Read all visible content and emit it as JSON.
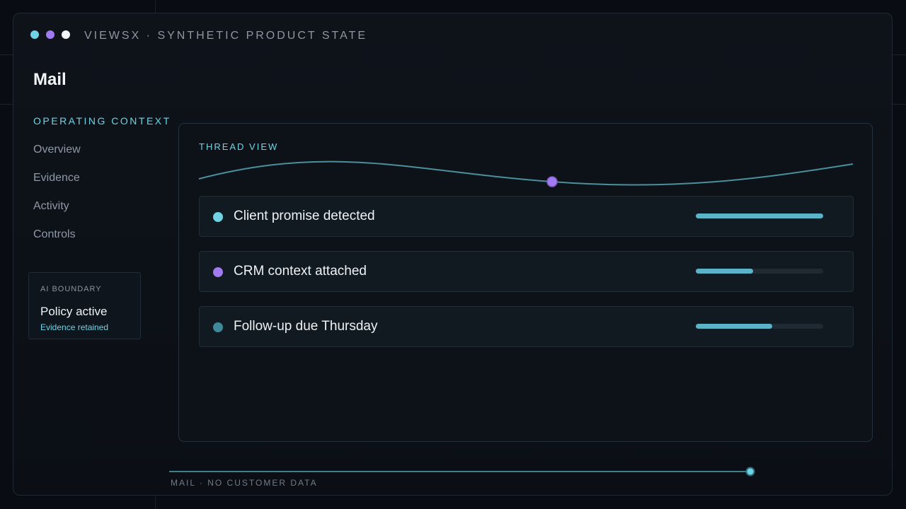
{
  "brand": {
    "text": "VIEWSX · SYNTHETIC PRODUCT STATE"
  },
  "window_dots": [
    {
      "name": "cyan",
      "color": "#6fd3e4"
    },
    {
      "name": "purple",
      "color": "#a07af0"
    },
    {
      "name": "white",
      "color": "#f2f5f8"
    }
  ],
  "app": {
    "title": "Mail"
  },
  "sidebar": {
    "heading": "OPERATING CONTEXT",
    "items": [
      {
        "label": "Overview"
      },
      {
        "label": "Evidence"
      },
      {
        "label": "Activity"
      },
      {
        "label": "Controls"
      }
    ]
  },
  "boundary": {
    "label": "AI BOUNDARY",
    "title": "Policy active",
    "subtitle": "Evidence retained"
  },
  "panel": {
    "title": "THREAD VIEW",
    "rows": [
      {
        "label": "Client promise detected",
        "dot_color": "#6fd3e4",
        "progress": 1.0
      },
      {
        "label": "CRM context attached",
        "dot_color": "#a07af0",
        "progress": 0.45
      },
      {
        "label": "Follow-up due Thursday",
        "dot_color": "#3f8a9a",
        "progress": 0.6
      }
    ]
  },
  "footer": {
    "text": "MAIL · NO CUSTOMER DATA"
  },
  "colors": {
    "accent": "#6fd3e4",
    "accent_bar": "#5bb3c8",
    "purple": "#a07af0",
    "teal_line": "#4a8f9e"
  }
}
